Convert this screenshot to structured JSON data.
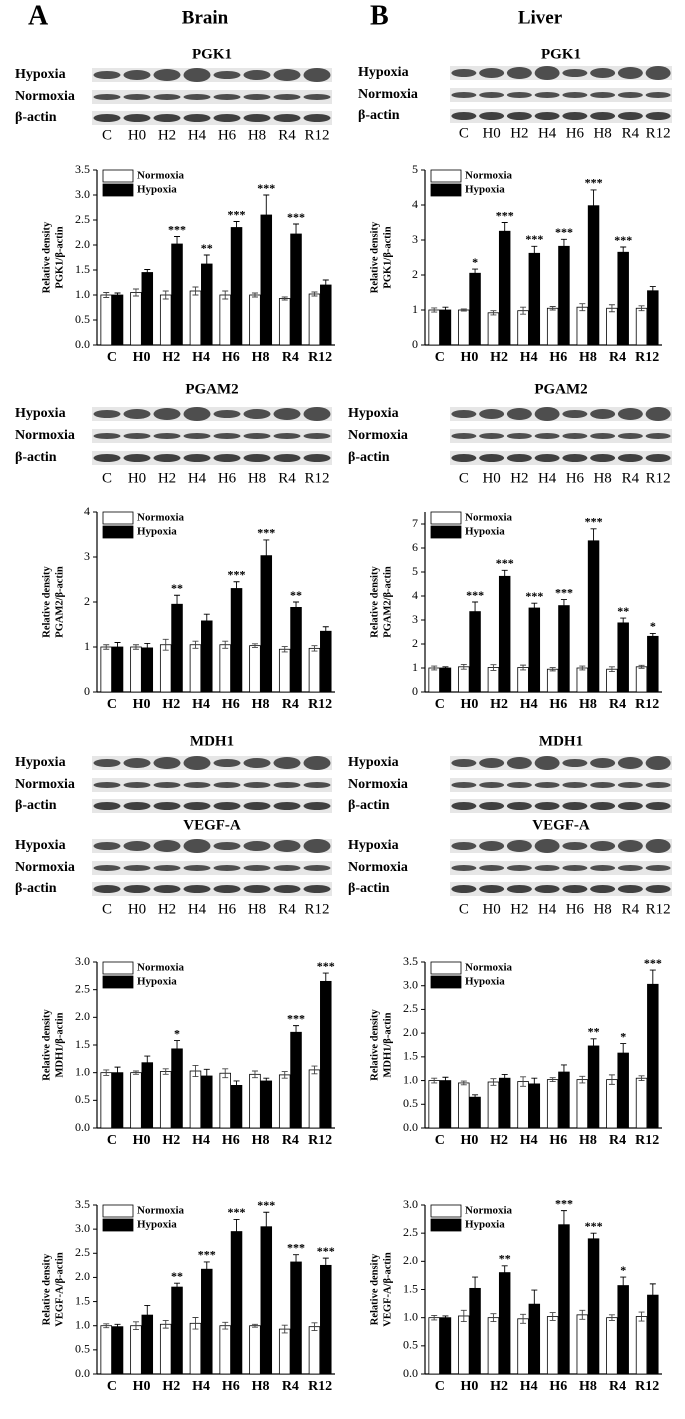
{
  "panels": [
    {
      "letter": "A",
      "title": "Brain"
    },
    {
      "letter": "B",
      "title": "Liver"
    }
  ],
  "row_labels": [
    "Hypoxia",
    "Normoxia",
    "β-actin"
  ],
  "lanes": [
    "C",
    "H0",
    "H2",
    "H4",
    "H6",
    "H8",
    "R4",
    "R12"
  ],
  "blots": [
    "PGK1",
    "PGK1",
    "PGAM2",
    "PGAM2",
    "MDH1",
    "MDH1",
    "VEGF-A",
    "VEGF-A"
  ],
  "chart_data": [
    {
      "type": "bar",
      "ylabel": [
        "Relative density",
        "PGK1/β-actin"
      ],
      "categories": [
        "C",
        "H0",
        "H2",
        "H4",
        "H6",
        "H8",
        "R4",
        "R12"
      ],
      "series": [
        {
          "name": "Normoxia",
          "color": "#ffffff",
          "values": [
            1.0,
            1.05,
            1.0,
            1.08,
            1.0,
            1.0,
            0.93,
            1.02
          ],
          "errors": [
            0.05,
            0.07,
            0.08,
            0.08,
            0.08,
            0.04,
            0.03,
            0.04
          ]
        },
        {
          "name": "Hypoxia",
          "color": "#000000",
          "values": [
            1.0,
            1.45,
            2.02,
            1.62,
            2.35,
            2.6,
            2.22,
            1.2
          ],
          "errors": [
            0.04,
            0.06,
            0.15,
            0.18,
            0.12,
            0.4,
            0.2,
            0.1
          ]
        }
      ],
      "annotations": [
        null,
        null,
        "***",
        "**",
        "***",
        "***",
        "***",
        null
      ],
      "ylim": [
        0,
        3.5
      ],
      "yticks": [
        {
          "value": 0,
          "label": "0.0"
        },
        0.5,
        {
          "value": 1,
          "label": "1.0"
        },
        1.5,
        {
          "value": 2,
          "label": "2.0"
        },
        2.5,
        {
          "value": 3,
          "label": "3.0"
        },
        3.5
      ]
    },
    {
      "type": "bar",
      "ylabel": [
        "Relative density",
        "PGK1/β-actin"
      ],
      "categories": [
        "C",
        "H0",
        "H2",
        "H4",
        "H6",
        "H8",
        "R4",
        "R12"
      ],
      "series": [
        {
          "name": "Normoxia",
          "color": "#ffffff",
          "values": [
            1.0,
            1.0,
            0.92,
            0.98,
            1.05,
            1.08,
            1.05,
            1.05
          ],
          "errors": [
            0.06,
            0.03,
            0.06,
            0.1,
            0.05,
            0.1,
            0.1,
            0.07
          ]
        },
        {
          "name": "Hypoxia",
          "color": "#000000",
          "values": [
            1.0,
            2.05,
            3.25,
            2.62,
            2.82,
            3.98,
            2.65,
            1.55
          ],
          "errors": [
            0.08,
            0.12,
            0.25,
            0.2,
            0.2,
            0.45,
            0.15,
            0.12
          ]
        }
      ],
      "annotations": [
        null,
        "*",
        "***",
        "***",
        "***",
        "***",
        "***",
        null
      ],
      "ylim": [
        0,
        5
      ],
      "yticks": [
        0,
        1,
        2,
        3,
        4,
        5
      ]
    },
    {
      "type": "bar",
      "ylabel": [
        "Relative density",
        "PGAM2/β-actin"
      ],
      "categories": [
        "C",
        "H0",
        "H2",
        "H4",
        "H6",
        "H8",
        "R4",
        "R12"
      ],
      "series": [
        {
          "name": "Normoxia",
          "color": "#ffffff",
          "values": [
            1.0,
            1.0,
            1.05,
            1.05,
            1.05,
            1.03,
            0.95,
            0.97
          ],
          "errors": [
            0.05,
            0.05,
            0.12,
            0.08,
            0.08,
            0.04,
            0.06,
            0.06
          ]
        },
        {
          "name": "Hypoxia",
          "color": "#000000",
          "values": [
            1.0,
            0.98,
            1.95,
            1.58,
            2.3,
            3.03,
            1.88,
            1.35
          ],
          "errors": [
            0.1,
            0.1,
            0.2,
            0.15,
            0.15,
            0.35,
            0.12,
            0.1
          ]
        }
      ],
      "annotations": [
        null,
        null,
        "**",
        null,
        "***",
        "***",
        "**",
        null
      ],
      "ylim": [
        0,
        4
      ],
      "yticks": [
        0,
        1,
        2,
        3,
        4
      ]
    },
    {
      "type": "bar",
      "ylabel": [
        "Relative density",
        "PGAM2/β-actin"
      ],
      "categories": [
        "C",
        "H0",
        "H2",
        "H4",
        "H6",
        "H8",
        "R4",
        "R12"
      ],
      "series": [
        {
          "name": "Normoxia",
          "color": "#ffffff",
          "values": [
            1.0,
            1.05,
            1.02,
            1.02,
            0.95,
            1.0,
            0.95,
            1.05
          ],
          "errors": [
            0.08,
            0.1,
            0.12,
            0.1,
            0.07,
            0.08,
            0.1,
            0.06
          ]
        },
        {
          "name": "Hypoxia",
          "color": "#000000",
          "values": [
            1.0,
            3.35,
            4.82,
            3.5,
            3.6,
            6.3,
            2.88,
            2.32
          ],
          "errors": [
            0.05,
            0.4,
            0.25,
            0.2,
            0.25,
            0.5,
            0.2,
            0.12
          ]
        }
      ],
      "annotations": [
        null,
        "***",
        "***",
        "***",
        "***",
        "***",
        "**",
        "*"
      ],
      "ylim": [
        0,
        7.5
      ],
      "yticks": [
        0,
        1,
        2,
        3,
        4,
        5,
        6,
        7
      ]
    },
    {
      "type": "bar",
      "ylabel": [
        "Relative density",
        "MDH1/β-actin"
      ],
      "categories": [
        "C",
        "H0",
        "H2",
        "H4",
        "H6",
        "H8",
        "R4",
        "R12"
      ],
      "series": [
        {
          "name": "Normoxia",
          "color": "#ffffff",
          "values": [
            1.0,
            1.0,
            1.02,
            1.03,
            0.99,
            0.97,
            0.96,
            1.05
          ],
          "errors": [
            0.05,
            0.03,
            0.05,
            0.1,
            0.08,
            0.06,
            0.06,
            0.07
          ]
        },
        {
          "name": "Hypoxia",
          "color": "#000000",
          "values": [
            1.0,
            1.18,
            1.43,
            0.94,
            0.77,
            0.85,
            1.73,
            2.65
          ],
          "errors": [
            0.1,
            0.12,
            0.15,
            0.12,
            0.08,
            0.05,
            0.12,
            0.15
          ]
        }
      ],
      "annotations": [
        null,
        null,
        "*",
        null,
        null,
        null,
        "***",
        "***"
      ],
      "ylim": [
        0,
        3
      ],
      "yticks": [
        {
          "value": 0,
          "label": "0.0"
        },
        0.5,
        {
          "value": 1,
          "label": "1.0"
        },
        1.5,
        {
          "value": 2,
          "label": "2.0"
        },
        2.5,
        {
          "value": 3,
          "label": "3.0"
        }
      ]
    },
    {
      "type": "bar",
      "ylabel": [
        "Relative density",
        "MDH1/β-actin"
      ],
      "categories": [
        "C",
        "H0",
        "H2",
        "H4",
        "H6",
        "H8",
        "R4",
        "R12"
      ],
      "series": [
        {
          "name": "Normoxia",
          "color": "#ffffff",
          "values": [
            1.0,
            0.95,
            0.97,
            0.98,
            1.02,
            1.02,
            1.02,
            1.05
          ],
          "errors": [
            0.05,
            0.04,
            0.07,
            0.1,
            0.04,
            0.07,
            0.1,
            0.05
          ]
        },
        {
          "name": "Hypoxia",
          "color": "#000000",
          "values": [
            1.0,
            0.65,
            1.05,
            0.93,
            1.18,
            1.73,
            1.58,
            3.03
          ],
          "errors": [
            0.07,
            0.05,
            0.08,
            0.12,
            0.15,
            0.15,
            0.2,
            0.3
          ]
        }
      ],
      "annotations": [
        null,
        null,
        null,
        null,
        null,
        "**",
        "*",
        "***"
      ],
      "ylim": [
        0,
        3.5
      ],
      "yticks": [
        {
          "value": 0,
          "label": "0.0"
        },
        0.5,
        {
          "value": 1,
          "label": "1.0"
        },
        1.5,
        {
          "value": 2,
          "label": "2.0"
        },
        2.5,
        {
          "value": 3,
          "label": "3.0"
        },
        3.5
      ]
    },
    {
      "type": "bar",
      "ylabel": [
        "Relative density",
        "VEGF-A/β-actin"
      ],
      "categories": [
        "C",
        "H0",
        "H2",
        "H4",
        "H6",
        "H8",
        "R4",
        "R12"
      ],
      "series": [
        {
          "name": "Normoxia",
          "color": "#ffffff",
          "values": [
            1.0,
            1.0,
            1.03,
            1.05,
            1.0,
            1.0,
            0.93,
            0.98
          ],
          "errors": [
            0.04,
            0.08,
            0.08,
            0.12,
            0.07,
            0.03,
            0.08,
            0.08
          ]
        },
        {
          "name": "Hypoxia",
          "color": "#000000",
          "values": [
            0.98,
            1.22,
            1.8,
            2.17,
            2.95,
            3.05,
            2.32,
            2.25
          ],
          "errors": [
            0.05,
            0.2,
            0.08,
            0.15,
            0.25,
            0.3,
            0.15,
            0.15
          ]
        }
      ],
      "annotations": [
        null,
        null,
        "**",
        "***",
        "***",
        "***",
        "***",
        "***"
      ],
      "ylim": [
        0,
        3.5
      ],
      "yticks": [
        {
          "value": 0,
          "label": "0.0"
        },
        0.5,
        {
          "value": 1,
          "label": "1.0"
        },
        1.5,
        {
          "value": 2,
          "label": "2.0"
        },
        2.5,
        {
          "value": 3,
          "label": "3.0"
        },
        3.5
      ]
    },
    {
      "type": "bar",
      "ylabel": [
        "Relative density",
        "VEGF-A/β-actin"
      ],
      "categories": [
        "C",
        "H0",
        "H2",
        "H4",
        "H6",
        "H8",
        "R4",
        "R12"
      ],
      "series": [
        {
          "name": "Normoxia",
          "color": "#ffffff",
          "values": [
            1.0,
            1.03,
            1.0,
            0.98,
            1.02,
            1.05,
            1.0,
            1.02
          ],
          "errors": [
            0.04,
            0.1,
            0.07,
            0.08,
            0.07,
            0.08,
            0.05,
            0.08
          ]
        },
        {
          "name": "Hypoxia",
          "color": "#000000",
          "values": [
            1.0,
            1.52,
            1.8,
            1.24,
            2.65,
            2.4,
            1.57,
            1.4
          ],
          "errors": [
            0.03,
            0.2,
            0.12,
            0.25,
            0.25,
            0.1,
            0.15,
            0.2
          ]
        }
      ],
      "annotations": [
        null,
        null,
        "**",
        null,
        "***",
        "***",
        "*",
        null
      ],
      "ylim": [
        0,
        3
      ],
      "yticks": [
        {
          "value": 0,
          "label": "0.0"
        },
        0.5,
        {
          "value": 1,
          "label": "1.0"
        },
        1.5,
        {
          "value": 2,
          "label": "2.0"
        },
        2.5,
        {
          "value": 3,
          "label": "3.0"
        }
      ]
    }
  ]
}
